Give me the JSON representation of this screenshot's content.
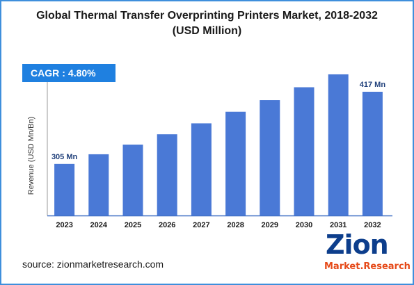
{
  "title": "Global Thermal Transfer Overprinting Printers Market, 2018-2032 (USD Million)",
  "cagr": {
    "label": "CAGR",
    "separator": ":",
    "value": "4.80%"
  },
  "source": "source: zionmarketresearch.com",
  "logo": {
    "primary": "Zion",
    "secondary": "Market.Research"
  },
  "colors": {
    "bar": "#4a79d6",
    "accent": "#1f80e0",
    "frame": "#3f8fdc"
  },
  "chart_data": {
    "type": "bar",
    "title": "Global Thermal Transfer Overprinting Printers Market, 2018-2032 (USD Million)",
    "ylabel": "Revenue (USD Mn/Bn)",
    "xlabel": "",
    "categories": [
      "2023",
      "2024",
      "2025",
      "2026",
      "2027",
      "2028",
      "2029",
      "2030",
      "2031",
      "2032"
    ],
    "values": [
      305,
      320,
      335,
      351,
      368,
      386,
      404,
      424,
      444,
      417
    ],
    "data_labels": [
      {
        "index": 0,
        "text": "305 Mn"
      },
      {
        "index": 9,
        "text": "417 Mn"
      }
    ],
    "grid": false,
    "legend": "none"
  }
}
